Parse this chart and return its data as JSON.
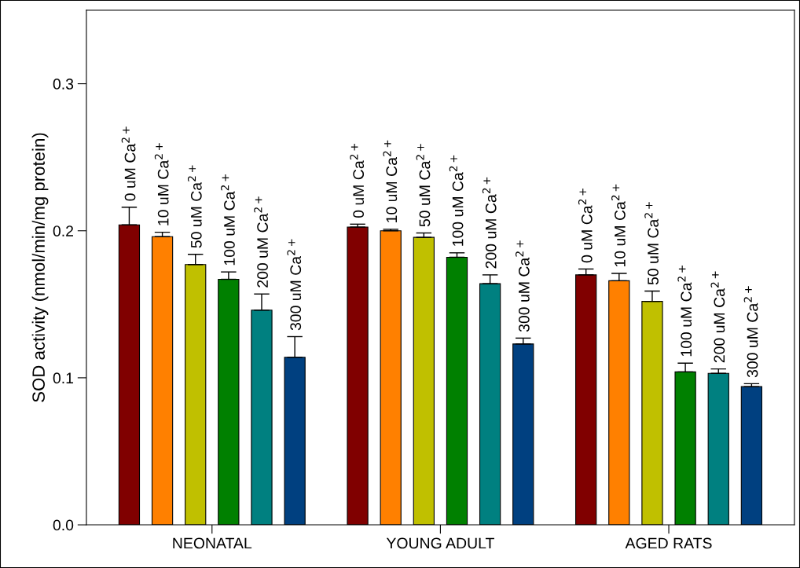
{
  "chart_data": {
    "type": "bar",
    "ylabel": "SOD activity (nmol/min/mg protein)",
    "categories": [
      "NEONATAL",
      "YOUNG ADULT",
      "AGED RATS"
    ],
    "series": [
      {
        "name": "0 uM Ca$^{2+}$",
        "color": "#800000",
        "values": [
          0.204,
          0.2025,
          0.17
        ],
        "errors": [
          0.012,
          0.002,
          0.004
        ]
      },
      {
        "name": "10 uM Ca$^{2+}$",
        "color": "#ff8000",
        "values": [
          0.196,
          0.2,
          0.166
        ],
        "errors": [
          0.003,
          0.001,
          0.005
        ]
      },
      {
        "name": "50 uM Ca$^{2+}$",
        "color": "#c0c000",
        "values": [
          0.177,
          0.1955,
          0.152
        ],
        "errors": [
          0.007,
          0.003,
          0.007
        ]
      },
      {
        "name": "100 uM Ca$^{2+}$",
        "color": "#008000",
        "values": [
          0.167,
          0.182,
          0.104
        ],
        "errors": [
          0.005,
          0.003,
          0.006
        ]
      },
      {
        "name": "200 uM Ca$^{2+}$",
        "color": "#008080",
        "values": [
          0.146,
          0.164,
          0.103
        ],
        "errors": [
          0.011,
          0.006,
          0.003
        ]
      },
      {
        "name": "300 uM Ca$^{2+}$",
        "color": "#004080",
        "values": [
          0.114,
          0.123,
          0.094
        ],
        "errors": [
          0.014,
          0.004,
          0.002
        ]
      }
    ],
    "ylim": [
      0,
      0.35
    ],
    "yticks": [
      {
        "value": 0,
        "label": "0.0"
      },
      0.1,
      0.2,
      0.3
    ],
    "grid": false,
    "legend": false
  }
}
